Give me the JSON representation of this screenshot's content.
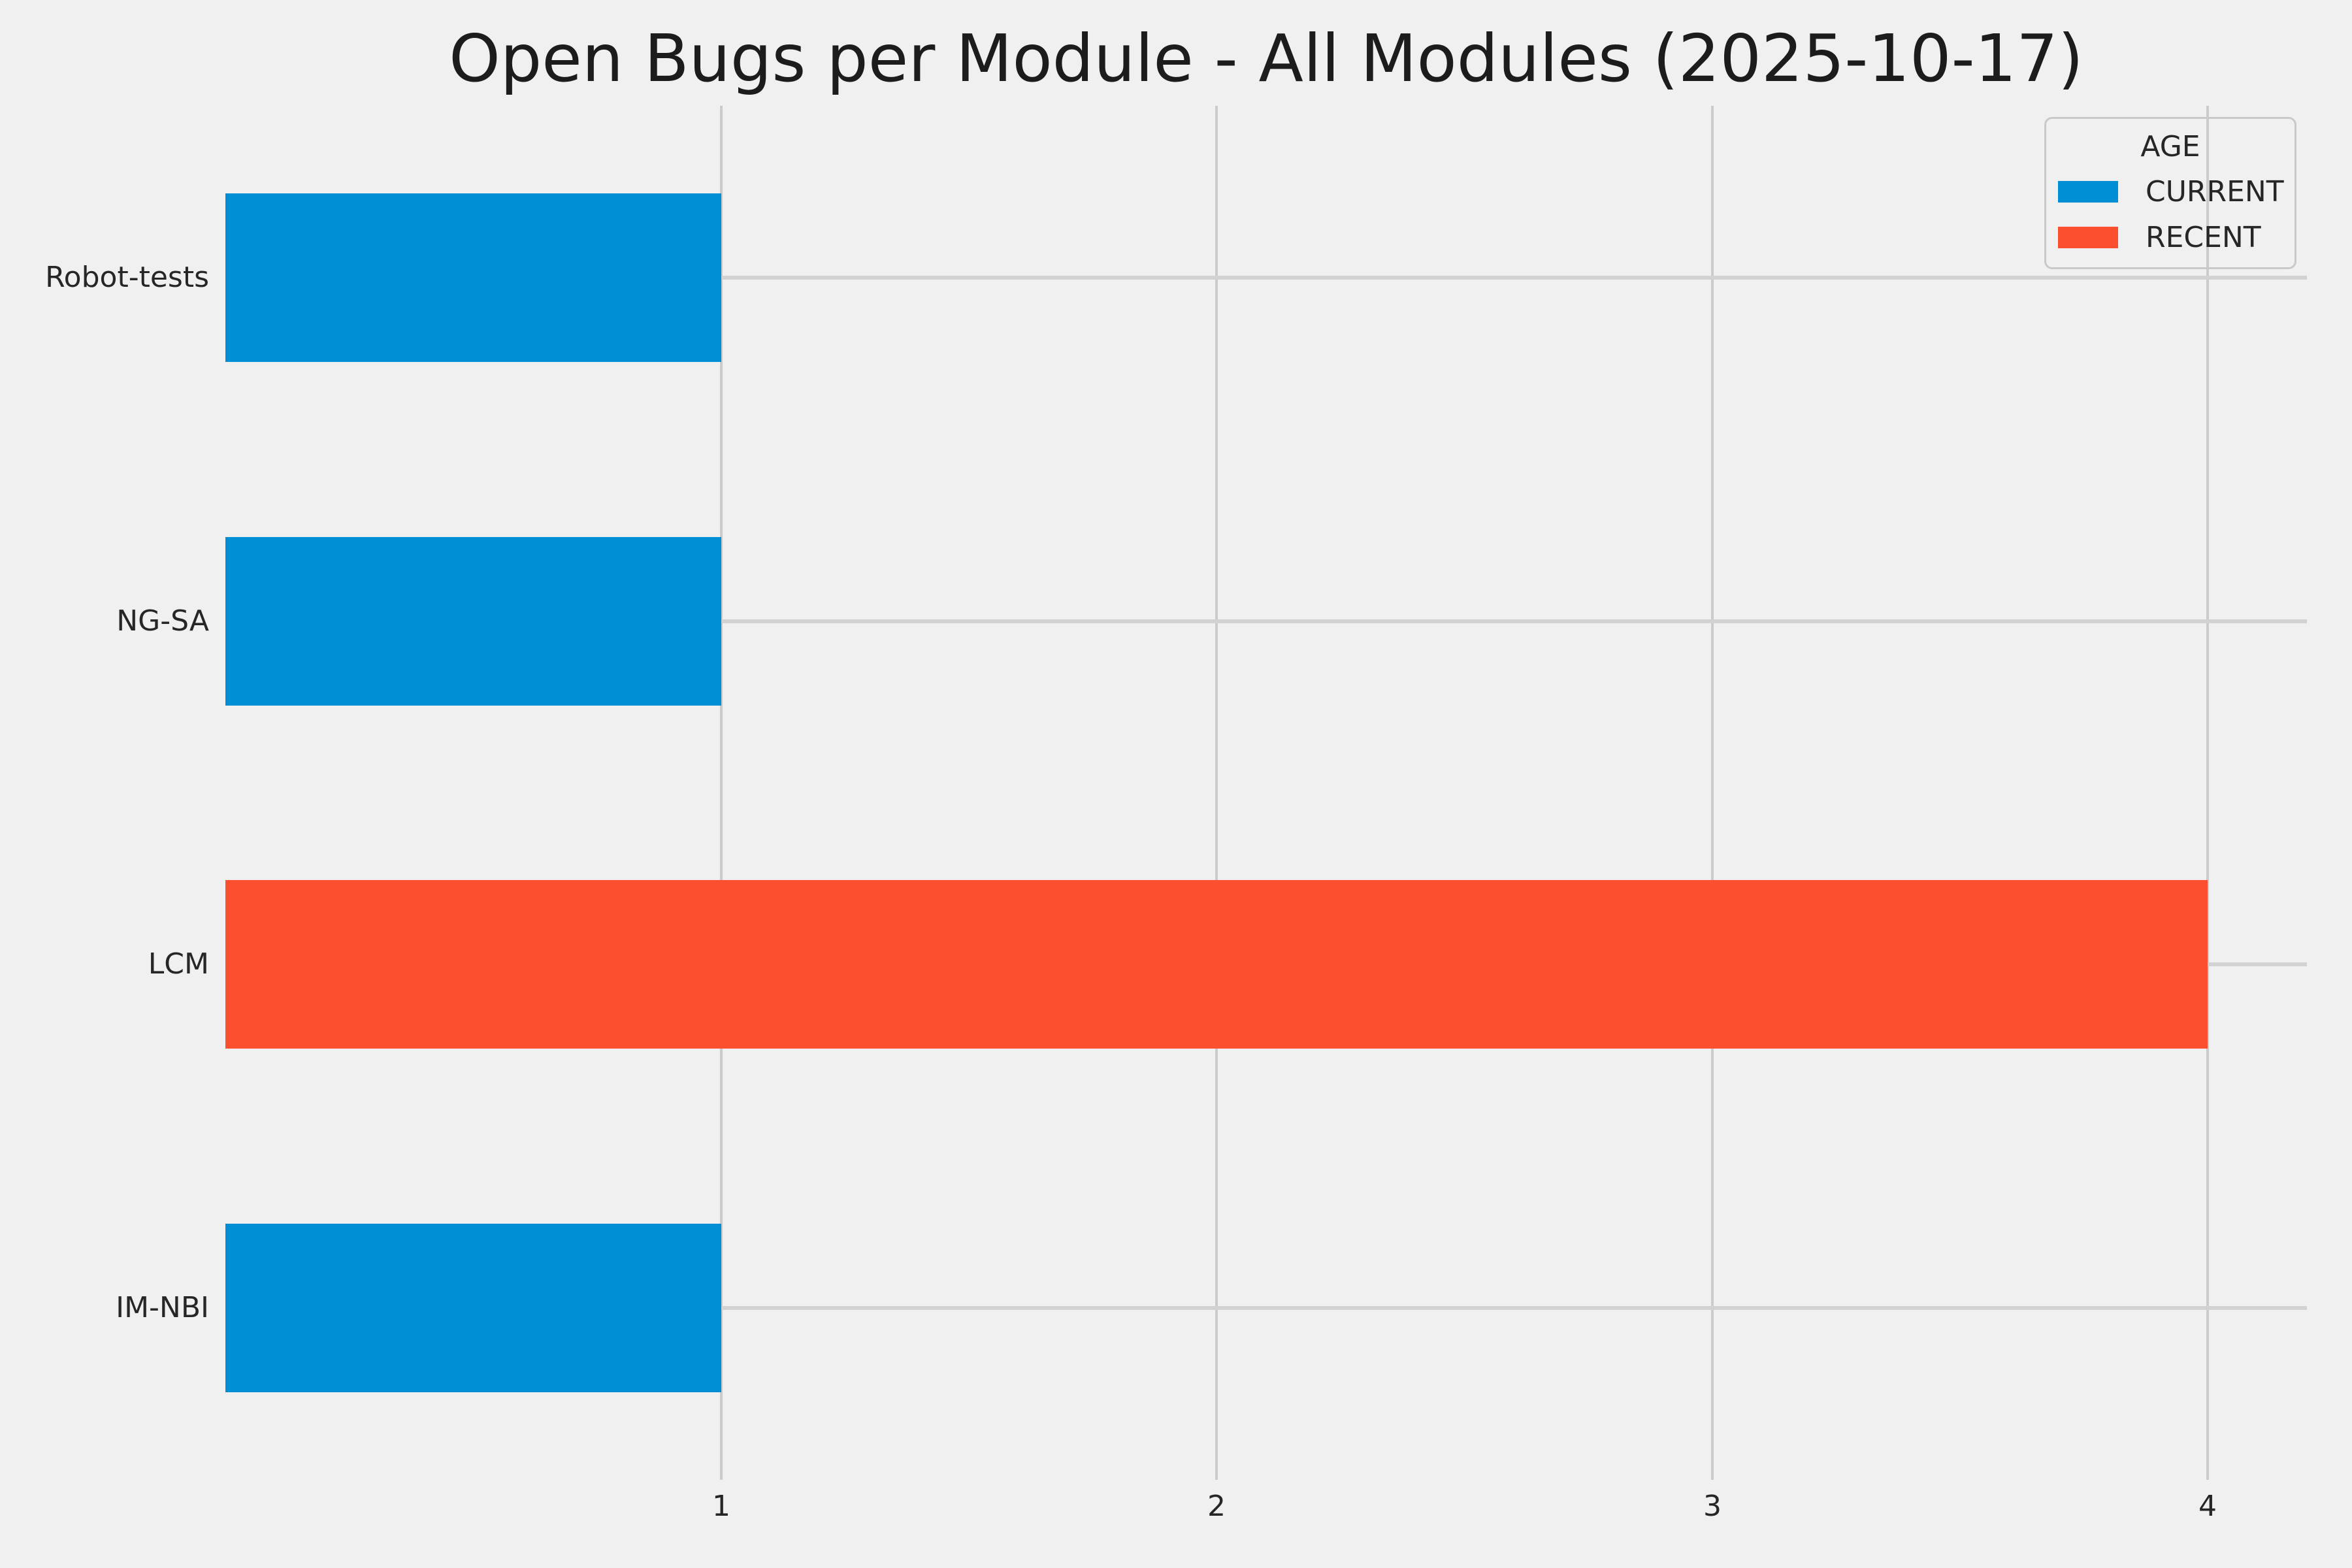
{
  "page": {
    "background": "#f0f0f0",
    "grid_color": "#cbcbcb",
    "text_color": "#262626"
  },
  "chart_data": {
    "type": "bar",
    "orientation": "horizontal",
    "title": "Open Bugs per Module - All Modules (2025-10-17)",
    "categories": [
      "Robot-tests",
      "NG-SA",
      "LCM",
      "IM-NBI"
    ],
    "values": [
      1,
      1,
      4,
      1
    ],
    "age_by_category": [
      "CURRENT",
      "CURRENT",
      "RECENT",
      "CURRENT"
    ],
    "x_ticks": [
      "1",
      "2",
      "3",
      "4"
    ],
    "xlim": [
      0,
      4.2
    ],
    "xlabel": "",
    "ylabel": "",
    "grid": true,
    "legend": {
      "title": "AGE",
      "position": "upper right",
      "entries": [
        {
          "label": "CURRENT",
          "color": "#008fd5"
        },
        {
          "label": "RECENT",
          "color": "#fc4f30"
        }
      ]
    },
    "colors": {
      "CURRENT": "#008fd5",
      "RECENT": "#fc4f30"
    }
  }
}
